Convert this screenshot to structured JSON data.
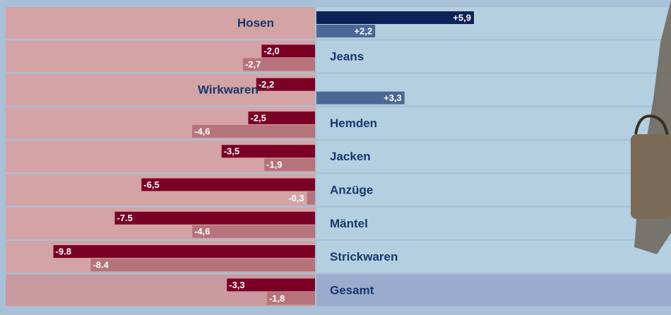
{
  "chart_data": {
    "type": "diverging-bar",
    "categories": [
      "Hosen",
      "Jeans",
      "Wirkwaren",
      "Hemden",
      "Jacken",
      "Anzüge",
      "Mäntel",
      "Strickwaren",
      "Gesamt"
    ],
    "series": [
      {
        "color": "#7a0026",
        "positive_color": "#0c2258",
        "values": [
          5.9,
          -2.0,
          -2.2,
          -2.5,
          -3.5,
          -6.5,
          -7.5,
          -9.8,
          -3.3
        ],
        "value_labels": [
          "+5,9",
          "-2,0",
          "-2,2",
          "-2,5",
          "-3,5",
          "-6,5",
          "-7.5",
          "-9.8",
          "-3,3"
        ]
      },
      {
        "color": "#b6737a",
        "positive_color": "#4b6795",
        "values": [
          2.2,
          -2.7,
          3.3,
          -4.6,
          -1.9,
          -0.3,
          -4.6,
          -8.4,
          -1.8
        ],
        "value_labels": [
          "+2,2",
          "-2,7",
          "+3,3",
          "-4,6",
          "-1,9",
          "-0,3",
          "-4,6",
          "-8.4",
          "-1,8"
        ]
      }
    ]
  }
}
